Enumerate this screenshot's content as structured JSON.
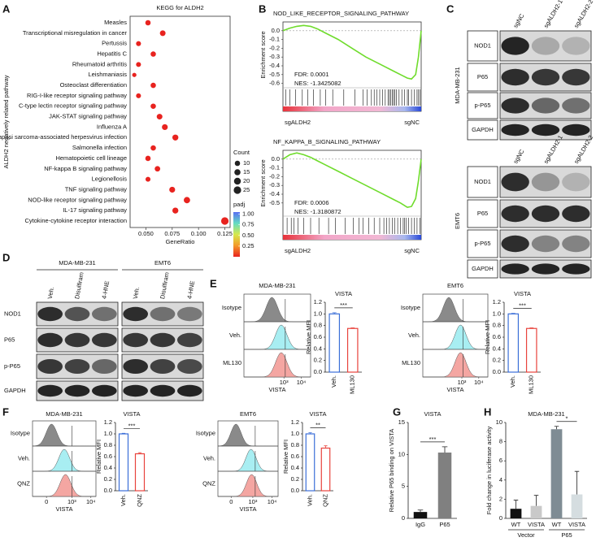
{
  "panel_letters": [
    "A",
    "B",
    "C",
    "D",
    "E",
    "F",
    "G",
    "H"
  ],
  "chart_data": [
    {
      "type": "dot",
      "title": "KEGG for ALDH2",
      "x_label": "GeneRatio",
      "y_label": "ALDH2 negatively related pathway",
      "categories": [
        "Measles",
        "Transcriptional misregulation in cancer",
        "Pertussis",
        "Hepatitis C",
        "Rheumatoid arthritis",
        "Leishmaniasis",
        "Osteoclast differentiation",
        "RIG-I-like receptor signaling pathway",
        "C-type lectin receptor signaling pathway",
        "JAK-STAT signaling pathway",
        "Influenza A",
        "Kaposi sarcoma-associated herpesvirus infection",
        "Salmonella infection",
        "Hematopoietic cell lineage",
        "NF-kappa B signaling pathway",
        "Legionellosis",
        "TNF signaling pathway",
        "NOD-like receptor signaling pathway",
        "IL-17 signaling pathway",
        "Cytokine-cytokine receptor interaction"
      ],
      "values": [
        0.052,
        0.066,
        0.043,
        0.057,
        0.043,
        0.039,
        0.057,
        0.043,
        0.057,
        0.063,
        0.068,
        0.078,
        0.057,
        0.052,
        0.061,
        0.052,
        0.075,
        0.089,
        0.078,
        0.125
      ],
      "sizes": [
        10,
        12,
        8,
        10,
        8,
        5,
        10,
        8,
        10,
        12,
        13,
        14,
        10,
        10,
        11,
        8,
        13,
        16,
        14,
        25
      ],
      "label_colors": [
        "#222",
        "#222",
        "#222",
        "#222",
        "#222",
        "#222",
        "#222",
        "#222",
        "#222",
        "#222",
        "#222",
        "#222",
        "#222",
        "#222",
        "#e8231f",
        "#222",
        "#222",
        "#e8231f",
        "#222",
        "#222"
      ],
      "color": "#e8231f",
      "xlim": [
        0.035,
        0.13
      ],
      "xticks": [
        {
          "value": 0.05,
          "label": "0.050"
        },
        0.075,
        {
          "value": 0.1,
          "label": "0.100"
        },
        0.125
      ],
      "size_legend": {
        "title": "Count",
        "values": [
          10,
          15,
          20,
          25
        ]
      },
      "color_legend": {
        "title": "padj",
        "clim": [
          0,
          1.05
        ],
        "ticks": [
          0.25,
          {
            "value": 0.5,
            "label": "0.50"
          },
          0.75,
          {
            "value": 1,
            "label": "1.00"
          }
        ],
        "colors": [
          "#e8231f",
          "#f49a2a",
          "#d6e94a",
          "#63dcc4",
          "#5a6ff2"
        ]
      }
    },
    {
      "type": "gsea",
      "title": "NOD_LIKE_RECEPTOR_SIGNALING_PATHWAY",
      "y_label": "Enrichment score",
      "x": [
        0,
        5,
        10,
        15,
        20,
        25,
        30,
        40,
        50,
        60,
        70,
        80,
        85,
        90,
        93,
        96,
        98,
        100
      ],
      "values": [
        0,
        0.03,
        0.05,
        0.06,
        0.05,
        0.02,
        -0.02,
        -0.1,
        -0.2,
        -0.3,
        -0.38,
        -0.46,
        -0.5,
        -0.54,
        -0.55,
        -0.5,
        -0.3,
        0
      ],
      "hits": [
        2,
        5,
        9,
        14,
        18,
        22,
        27,
        31,
        36,
        44,
        52,
        58,
        61,
        64,
        66,
        68,
        70,
        72,
        74,
        76,
        77,
        78,
        79,
        80,
        81,
        82,
        84,
        86,
        88,
        90,
        91,
        93,
        95,
        97,
        98,
        99
      ],
      "color": "#6fdc2c",
      "xlim": [
        0,
        100
      ],
      "ylim": [
        -0.65,
        0.1
      ],
      "yticks": [
        {
          "value": 0,
          "label": "0.0"
        },
        -0.1,
        -0.2,
        -0.3,
        -0.4,
        -0.5,
        -0.6
      ],
      "fdr": "FDR: 0.0001",
      "nes": "NES: -1.3425082",
      "low_label": "sgALDH2",
      "high_label": "sgNC"
    },
    {
      "type": "gsea",
      "title": "NF_KAPPA_B_SIGNALING_PATHWAY",
      "y_label": "Enrichment score",
      "x": [
        0,
        5,
        10,
        15,
        20,
        25,
        30,
        40,
        50,
        60,
        70,
        80,
        85,
        90,
        93,
        96,
        98,
        100
      ],
      "values": [
        0,
        0.05,
        0.07,
        0.05,
        0.02,
        -0.02,
        -0.06,
        -0.14,
        -0.22,
        -0.3,
        -0.38,
        -0.46,
        -0.5,
        -0.55,
        -0.54,
        -0.45,
        -0.25,
        0
      ],
      "hits": [
        3,
        6,
        8,
        11,
        15,
        20,
        26,
        33,
        38,
        45,
        51,
        55,
        58,
        62,
        66,
        70,
        73,
        75,
        77,
        79,
        81,
        83,
        85,
        87,
        88,
        89,
        91,
        93,
        95,
        97,
        99
      ],
      "color": "#6fdc2c",
      "xlim": [
        0,
        100
      ],
      "ylim": [
        -0.65,
        0.1
      ],
      "yticks": [
        {
          "value": 0,
          "label": "0.0"
        },
        -0.1,
        -0.2,
        -0.3,
        -0.4,
        -0.5
      ],
      "fdr": "FDR: 0.0006",
      "nes": "NES: -1.3180872",
      "low_label": "sgALDH2",
      "high_label": "sgNC"
    },
    {
      "type": "bar",
      "title": "VISTA",
      "y_label": "Relative MFI",
      "categories": [
        "Veh.",
        "ML130"
      ],
      "values": [
        1.0,
        0.75
      ],
      "errors": [
        0.02,
        0.01
      ],
      "colors": [
        "#3b6fd8",
        "#e8433c"
      ],
      "style": "outline",
      "rotated_labels": true,
      "ylim": [
        0,
        1.2
      ],
      "yticks": [
        {
          "value": 0,
          "label": "0.0"
        },
        0.2,
        0.4,
        0.6,
        0.8,
        {
          "value": 1,
          "label": "1.0"
        },
        1.2
      ],
      "significance": "***"
    },
    {
      "type": "bar",
      "title": "VISTA",
      "y_label": "Relative MFI",
      "categories": [
        "Veh.",
        "ML130"
      ],
      "values": [
        1.0,
        0.75
      ],
      "errors": [
        0.01,
        0.01
      ],
      "colors": [
        "#3b6fd8",
        "#e8433c"
      ],
      "style": "outline",
      "rotated_labels": true,
      "ylim": [
        0,
        1.2
      ],
      "yticks": [
        {
          "value": 0,
          "label": "0.0"
        },
        0.2,
        0.4,
        0.6,
        0.8,
        {
          "value": 1,
          "label": "1.0"
        },
        1.2
      ],
      "significance": "***"
    },
    {
      "type": "bar",
      "title": "VISTA",
      "y_label": "Relative MFI",
      "categories": [
        "Veh.",
        "QNZ"
      ],
      "values": [
        1.0,
        0.65
      ],
      "errors": [
        0.01,
        0.02
      ],
      "colors": [
        "#3b6fd8",
        "#e8433c"
      ],
      "style": "outline",
      "rotated_labels": true,
      "ylim": [
        0,
        1.2
      ],
      "yticks": [
        {
          "value": 0,
          "label": "0.0"
        },
        0.2,
        0.4,
        0.6,
        0.8,
        {
          "value": 1,
          "label": "1.0"
        },
        1.2
      ],
      "significance": "***"
    },
    {
      "type": "bar",
      "title": "VISTA",
      "y_label": "Relative MFI",
      "categories": [
        "Veh.",
        "QNZ"
      ],
      "values": [
        1.0,
        0.75
      ],
      "errors": [
        0.02,
        0.04
      ],
      "colors": [
        "#3b6fd8",
        "#e8433c"
      ],
      "style": "outline",
      "rotated_labels": true,
      "ylim": [
        0,
        1.2
      ],
      "yticks": [
        {
          "value": 0,
          "label": "0.0"
        },
        0.2,
        0.4,
        0.6,
        0.8,
        {
          "value": 1,
          "label": "1.0"
        },
        1.2
      ],
      "significance": "**"
    },
    {
      "type": "bar",
      "title": "VISTA",
      "y_label": "Relative P65 binding on VISTA",
      "categories": [
        "IgG",
        "P65"
      ],
      "values": [
        1.0,
        10.3
      ],
      "errors": [
        0.3,
        0.9
      ],
      "colors": [
        "#111111",
        "#808080"
      ],
      "style": "filled",
      "ylim": [
        0,
        15
      ],
      "yticks": [
        0,
        5,
        10,
        15
      ],
      "significance": "***"
    },
    {
      "type": "bar",
      "title": "MDA-MB-231",
      "y_label": "Fold change in luciferase activity",
      "categories": [
        "WT",
        "VISTA",
        "WT",
        "VISTA"
      ],
      "group_labels": [
        "Vector",
        "P65"
      ],
      "values": [
        1.0,
        1.3,
        9.3,
        2.5
      ],
      "errors": [
        0.9,
        1.1,
        0.3,
        2.4
      ],
      "colors": [
        "#111111",
        "#c9c9c9",
        "#7f8c94",
        "#d5dde0"
      ],
      "style": "filled",
      "ylim": [
        0,
        10
      ],
      "yticks": [
        0,
        2,
        4,
        6,
        8,
        10
      ],
      "significance": "*"
    }
  ],
  "blots": [
    {
      "cell_lines": [
        "MDA-MB-231"
      ],
      "lanes": [
        "sgNC",
        "sgALDH2-1",
        "sgALDH2-2"
      ],
      "rows": [
        "NOD1",
        "P65",
        "p-P65",
        "GAPDH"
      ]
    },
    {
      "cell_lines": [
        "EMT6"
      ],
      "lanes": [
        "sgNC",
        "sgALDH2-1",
        "sgALDH2-2"
      ],
      "rows": [
        "NOD1",
        "P65",
        "p-P65",
        "GAPDH"
      ]
    },
    {
      "cell_lines": [
        "MDA-MB-231",
        "EMT6"
      ],
      "lanes": [
        "Veh.",
        "Disulfiram",
        "4-HNE"
      ],
      "rows": [
        "NOD1",
        "P65",
        "p-P65",
        "GAPDH"
      ]
    }
  ],
  "flow": [
    {
      "title": "MDA-MB-231",
      "rows": [
        "Isotype",
        "Veh.",
        "ML130"
      ],
      "colors": [
        "#8a8a8a",
        "#a8eef2",
        "#f4a6a2"
      ],
      "x_label": "VISTA",
      "tick_labels": [
        "10³",
        "10⁴"
      ]
    },
    {
      "title": "EMT6",
      "rows": [
        "Isotype",
        "Veh.",
        "ML130"
      ],
      "colors": [
        "#8a8a8a",
        "#a8eef2",
        "#f4a6a2"
      ],
      "x_label": "VISTA",
      "tick_labels": [
        "10³",
        "10⁴"
      ]
    },
    {
      "title": "MDA-MB-231",
      "rows": [
        "Isotype",
        "Veh.",
        "QNZ"
      ],
      "colors": [
        "#8a8a8a",
        "#a8eef2",
        "#f4a6a2"
      ],
      "x_label": "VISTA",
      "tick_labels": [
        "0",
        "10³",
        "10⁴"
      ]
    },
    {
      "title": "EMT6",
      "rows": [
        "Isotype",
        "Veh.",
        "QNZ"
      ],
      "colors": [
        "#8a8a8a",
        "#a8eef2",
        "#f4a6a2"
      ],
      "x_label": "VISTA",
      "tick_labels": [
        "0",
        "10³",
        "10⁴"
      ]
    }
  ]
}
